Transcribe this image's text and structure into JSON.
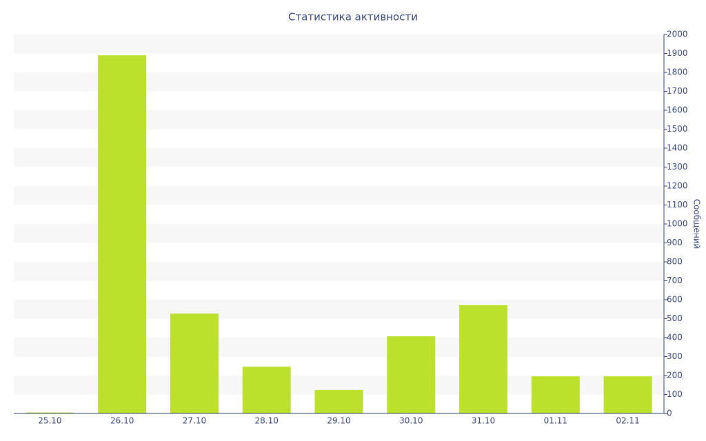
{
  "chart_data": {
    "type": "bar",
    "title": "Статистика активности",
    "y_label": "Сообщений",
    "categories": [
      "25.10",
      "26.10",
      "27.10",
      "28.10",
      "29.10",
      "30.10",
      "31.10",
      "01.11",
      "02.11"
    ],
    "values": [
      5,
      1890,
      527,
      247,
      124,
      407,
      571,
      196,
      196
    ],
    "color": "#bbe12d",
    "ylim": [
      0,
      2000
    ],
    "yticks": [
      0,
      100,
      200,
      300,
      400,
      500,
      600,
      700,
      800,
      900,
      1000,
      1100,
      1200,
      1300,
      1400,
      1500,
      1600,
      1700,
      1800,
      1900,
      2000
    ],
    "grid": true
  }
}
